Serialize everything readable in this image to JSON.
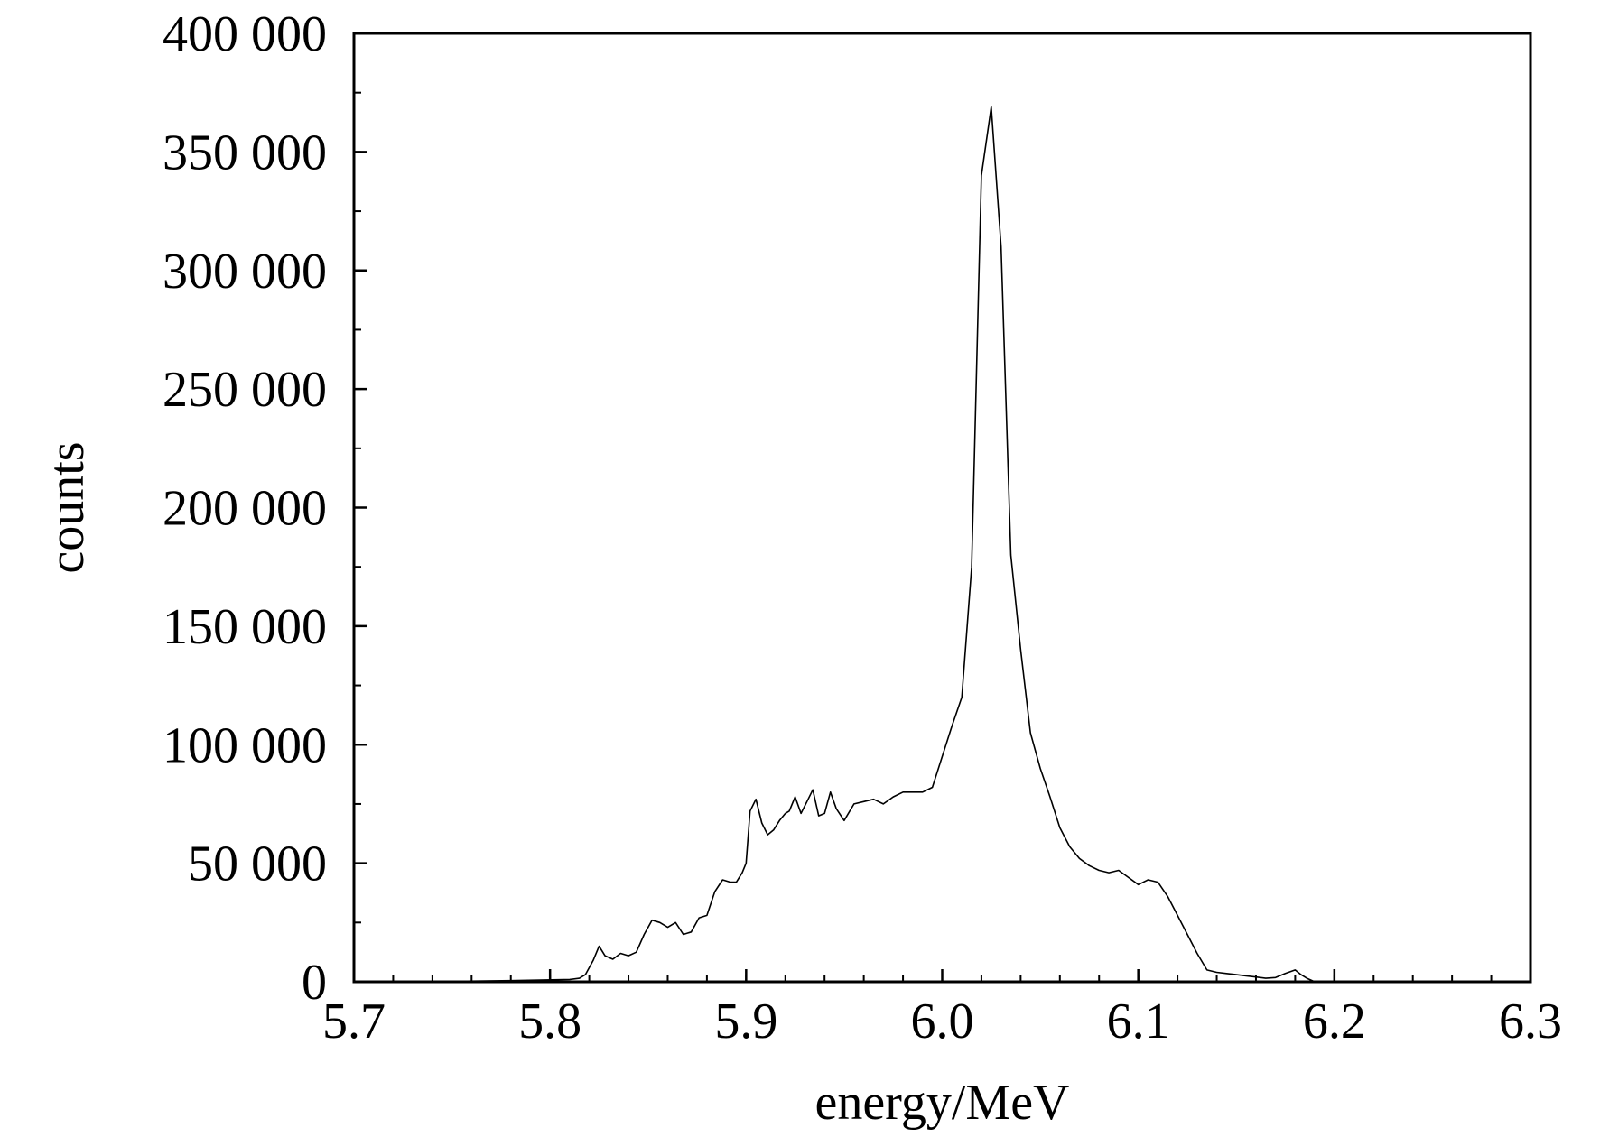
{
  "chart_data": {
    "type": "line",
    "title": "",
    "xlabel": "energy/MeV",
    "ylabel": "counts",
    "xlim": [
      5.7,
      6.3
    ],
    "ylim": [
      0,
      400000
    ],
    "x_ticks": [
      5.7,
      5.8,
      5.9,
      6.0,
      6.1,
      6.2,
      6.3
    ],
    "x_tick_labels": [
      "5.7",
      "5.8",
      "5.9",
      "6.0",
      "6.1",
      "6.2",
      "6.3"
    ],
    "y_ticks": [
      0,
      50000,
      100000,
      150000,
      200000,
      250000,
      300000,
      350000,
      400000
    ],
    "y_tick_labels": [
      "0",
      "50 000",
      "100 000",
      "150 000",
      "200 000",
      "250 000",
      "300 000",
      "350 000",
      "400 000"
    ],
    "x_minor_step": 0.02,
    "y_minor_step": 25000,
    "grid": false,
    "line_color": "#000000",
    "series": [
      {
        "x": [
          5.7,
          5.75,
          5.78,
          5.81,
          5.815,
          5.818,
          5.822,
          5.825,
          5.828,
          5.832,
          5.836,
          5.84,
          5.844,
          5.848,
          5.852,
          5.856,
          5.86,
          5.864,
          5.868,
          5.872,
          5.876,
          5.88,
          5.884,
          5.888,
          5.892,
          5.895,
          5.898,
          5.9,
          5.902,
          5.905,
          5.908,
          5.911,
          5.914,
          5.917,
          5.92,
          5.922,
          5.925,
          5.928,
          5.931,
          5.934,
          5.937,
          5.94,
          5.943,
          5.946,
          5.95,
          5.955,
          5.96,
          5.965,
          5.97,
          5.975,
          5.98,
          5.985,
          5.99,
          5.995,
          6.0,
          6.005,
          6.01,
          6.015,
          6.02,
          6.025,
          6.03,
          6.035,
          6.04,
          6.045,
          6.05,
          6.055,
          6.06,
          6.065,
          6.07,
          6.075,
          6.08,
          6.085,
          6.09,
          6.095,
          6.1,
          6.105,
          6.11,
          6.115,
          6.12,
          6.125,
          6.13,
          6.135,
          6.14,
          6.145,
          6.15,
          6.155,
          6.16,
          6.165,
          6.17,
          6.175,
          6.18,
          6.183,
          6.186,
          6.19
        ],
        "values": [
          0,
          200,
          500,
          1000,
          1500,
          3000,
          9000,
          15000,
          11000,
          9500,
          12000,
          11000,
          12500,
          20000,
          26000,
          25000,
          23000,
          25000,
          20000,
          21000,
          27000,
          28000,
          38000,
          43000,
          42000,
          42000,
          46000,
          50000,
          72000,
          77000,
          67000,
          62000,
          64000,
          68000,
          71000,
          72000,
          78000,
          71000,
          76000,
          81000,
          70000,
          71000,
          80000,
          73000,
          68000,
          75000,
          76000,
          77000,
          75000,
          78000,
          80000,
          80000,
          80000,
          82000,
          95000,
          108000,
          120000,
          175000,
          340000,
          369000,
          310000,
          180000,
          140000,
          105000,
          90000,
          78000,
          65000,
          57000,
          52000,
          49000,
          47000,
          46000,
          47000,
          44000,
          41000,
          43000,
          42000,
          36000,
          28000,
          20000,
          12000,
          5000,
          4000,
          3500,
          3000,
          2500,
          2000,
          1500,
          1800,
          3500,
          5000,
          3000,
          1500,
          0
        ]
      }
    ]
  }
}
